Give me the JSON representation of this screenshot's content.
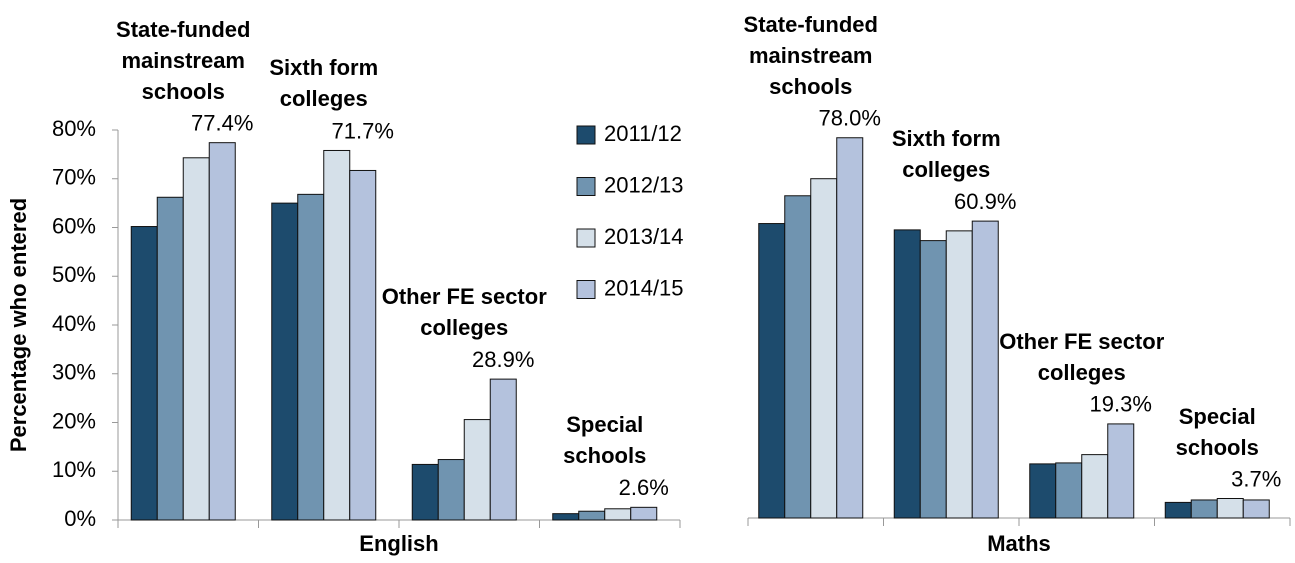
{
  "chart_data": [
    {
      "type": "bar",
      "x_label": "English",
      "y_label": "Percentage who entered",
      "categories": [
        "State-funded mainstream schools",
        "Sixth form colleges",
        "Other FE sector colleges",
        "Special schools"
      ],
      "series": [
        {
          "name": "2011/12",
          "color": "#1d4b6d",
          "values": [
            60.2,
            65.0,
            11.4,
            1.3
          ]
        },
        {
          "name": "2012/13",
          "color": "#7094b0",
          "values": [
            66.2,
            66.8,
            12.4,
            1.8
          ]
        },
        {
          "name": "2013/14",
          "color": "#d5e0e9",
          "values": [
            74.3,
            75.8,
            20.6,
            2.3
          ]
        },
        {
          "name": "2014/15",
          "color": "#b4c2dd",
          "values": [
            77.4,
            71.7,
            28.9,
            2.6
          ],
          "value_labels": [
            "77.4%",
            "71.7%",
            "28.9%",
            "2.6%"
          ]
        }
      ],
      "ylim": [
        0,
        80
      ],
      "yticks": [
        {
          "value": 0,
          "label": "0%"
        },
        {
          "value": 10,
          "label": "10%"
        },
        {
          "value": 20,
          "label": "20%"
        },
        {
          "value": 30,
          "label": "30%"
        },
        {
          "value": 40,
          "label": "40%"
        },
        {
          "value": 50,
          "label": "50%"
        },
        {
          "value": 60,
          "label": "60%"
        },
        {
          "value": 70,
          "label": "70%"
        },
        {
          "value": 80,
          "label": "80%"
        }
      ],
      "legend": "upper right"
    },
    {
      "type": "bar",
      "x_label": "Maths",
      "categories": [
        "State-funded mainstream schools",
        "Sixth form colleges",
        "Other FE sector colleges",
        "Special schools"
      ],
      "series": [
        {
          "name": "2011/12",
          "color": "#1d4b6d",
          "values": [
            60.4,
            59.1,
            11.1,
            3.2
          ]
        },
        {
          "name": "2012/13",
          "color": "#7094b0",
          "values": [
            66.1,
            56.9,
            11.3,
            3.7
          ]
        },
        {
          "name": "2013/14",
          "color": "#d5e0e9",
          "values": [
            69.6,
            58.9,
            13.0,
            4.0
          ]
        },
        {
          "name": "2014/15",
          "color": "#b4c2dd",
          "values": [
            78.0,
            60.9,
            19.3,
            3.7
          ],
          "value_labels": [
            "78.0%",
            "60.9%",
            "19.3%",
            "3.7%"
          ]
        }
      ],
      "ylim": [
        0,
        80
      ]
    }
  ]
}
